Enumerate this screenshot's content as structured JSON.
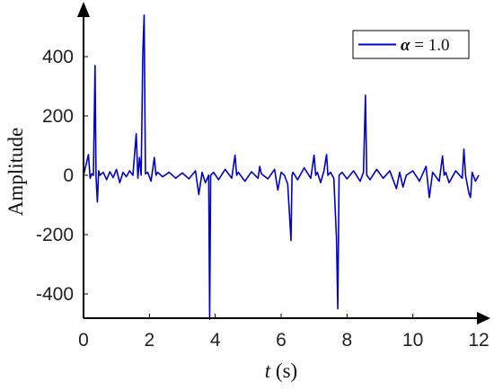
{
  "chart_data": {
    "type": "line",
    "title": "",
    "xlabel_var": "t",
    "xlabel_unit": " (s)",
    "ylabel": "Amplitude",
    "xlim": [
      0,
      12
    ],
    "ylim": [
      -480,
      570
    ],
    "x_ticks": [
      0,
      2,
      4,
      6,
      8,
      10,
      12
    ],
    "x_tick_labels": [
      "0",
      "2",
      "4",
      "6",
      "8",
      "10",
      "12"
    ],
    "y_ticks": [
      -400,
      -200,
      0,
      200,
      400
    ],
    "y_tick_labels": [
      "-400",
      "-200",
      "0",
      "200",
      "400"
    ],
    "grid": false,
    "legend_position": "top-right",
    "series": [
      {
        "name": "α = 1.0",
        "legend_symbol": "α",
        "legend_value": " = 1.0",
        "color": "#0000cc",
        "x": [
          0,
          0.15,
          0.2,
          0.25,
          0.3,
          0.35,
          0.38,
          0.42,
          0.46,
          0.5,
          0.6,
          0.7,
          0.8,
          0.9,
          1.0,
          1.1,
          1.2,
          1.3,
          1.4,
          1.5,
          1.6,
          1.65,
          1.7,
          1.75,
          1.8,
          1.84,
          1.88,
          1.95,
          2.05,
          2.15,
          2.2,
          2.25,
          2.4,
          2.6,
          2.8,
          3.0,
          3.2,
          3.4,
          3.5,
          3.6,
          3.7,
          3.8,
          3.83,
          3.86,
          3.95,
          4.1,
          4.3,
          4.5,
          4.6,
          4.65,
          4.7,
          4.9,
          5.1,
          5.3,
          5.35,
          5.4,
          5.6,
          5.8,
          5.9,
          6.0,
          6.1,
          6.2,
          6.3,
          6.33,
          6.36,
          6.5,
          6.7,
          6.9,
          7.0,
          7.05,
          7.1,
          7.2,
          7.3,
          7.38,
          7.42,
          7.5,
          7.6,
          7.68,
          7.72,
          7.76,
          7.85,
          8.0,
          8.2,
          8.4,
          8.5,
          8.56,
          8.6,
          8.7,
          8.9,
          9.1,
          9.3,
          9.5,
          9.6,
          9.7,
          9.8,
          10.0,
          10.2,
          10.4,
          10.5,
          10.6,
          10.8,
          10.9,
          10.95,
          11.0,
          11.1,
          11.3,
          11.5,
          11.55,
          11.6,
          11.7,
          11.75,
          11.8,
          11.9,
          12.0
        ],
        "y": [
          0,
          70,
          -10,
          5,
          0,
          370,
          -5,
          -90,
          15,
          0,
          10,
          -15,
          12,
          -8,
          20,
          -25,
          10,
          -5,
          15,
          0,
          140,
          -10,
          60,
          0,
          410,
          540,
          5,
          10,
          -20,
          60,
          0,
          10,
          -5,
          10,
          -10,
          8,
          -12,
          15,
          -65,
          10,
          -25,
          0,
          -485,
          0,
          10,
          -15,
          20,
          -10,
          68,
          0,
          10,
          -20,
          12,
          -10,
          30,
          5,
          -12,
          20,
          -50,
          10,
          0,
          -30,
          -220,
          0,
          10,
          -15,
          25,
          -10,
          68,
          0,
          10,
          -25,
          15,
          70,
          0,
          10,
          -10,
          -210,
          -450,
          0,
          10,
          -12,
          15,
          -20,
          10,
          270,
          0,
          -15,
          20,
          -10,
          15,
          -45,
          10,
          -40,
          0,
          15,
          -20,
          30,
          -75,
          10,
          -20,
          65,
          0,
          10,
          -25,
          15,
          -10,
          88,
          0,
          -60,
          -75,
          10,
          -20,
          0
        ]
      }
    ]
  }
}
